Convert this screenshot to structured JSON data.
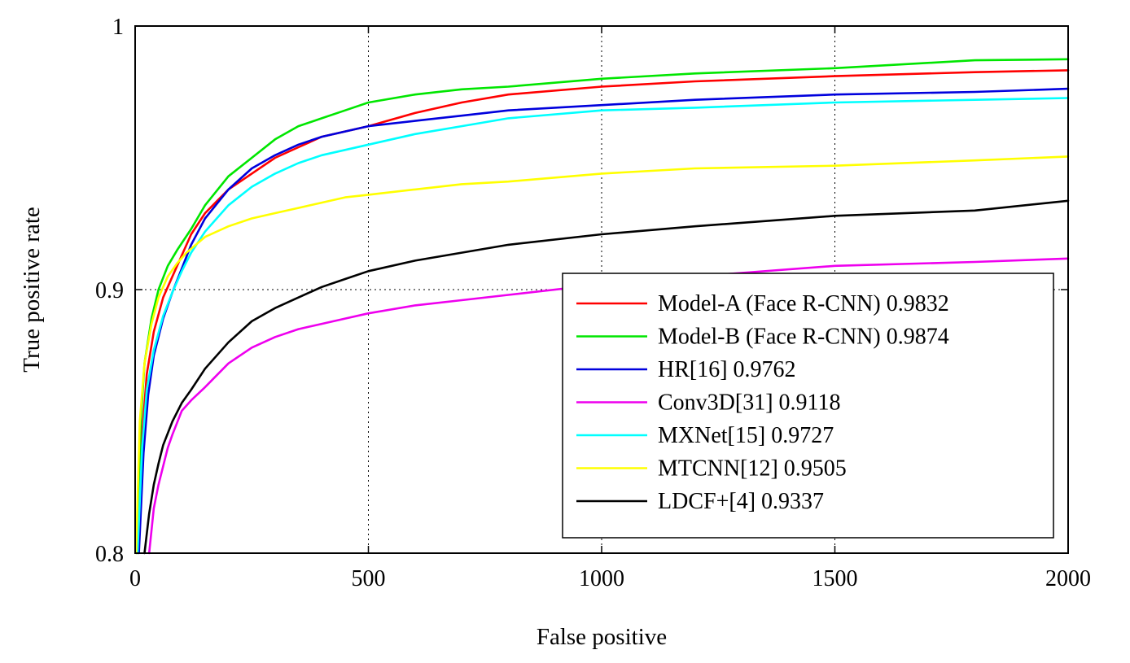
{
  "chart_data": {
    "type": "line",
    "title": "",
    "xlabel": "False positive",
    "ylabel": "True positive rate",
    "xlim": [
      0,
      2000
    ],
    "ylim": [
      0.8,
      1.0
    ],
    "xticks": [
      0,
      500,
      1000,
      1500,
      2000
    ],
    "xtick_labels": [
      "0",
      "500",
      "1000",
      "1500",
      "2000"
    ],
    "yticks": [
      0.8,
      0.9,
      1.0
    ],
    "ytick_labels": [
      "0.8",
      "0.9",
      "1"
    ],
    "grid": true,
    "legend_position": "bottom-right",
    "series": [
      {
        "name": "Model-A (Face R-CNN) 0.9832",
        "color": "#ff0000",
        "x": [
          5,
          15,
          25,
          40,
          60,
          80,
          100,
          120,
          150,
          200,
          250,
          300,
          350,
          400,
          450,
          500,
          600,
          700,
          800,
          1000,
          1200,
          1500,
          1800,
          2000
        ],
        "y": [
          0.8,
          0.845,
          0.868,
          0.884,
          0.897,
          0.905,
          0.913,
          0.921,
          0.929,
          0.938,
          0.944,
          0.95,
          0.954,
          0.958,
          0.96,
          0.962,
          0.967,
          0.971,
          0.974,
          0.977,
          0.979,
          0.981,
          0.9825,
          0.9832
        ]
      },
      {
        "name": "Model-B (Face R-CNN) 0.9874",
        "color": "#00e600",
        "x": [
          3,
          12,
          20,
          35,
          50,
          70,
          90,
          120,
          150,
          200,
          250,
          300,
          350,
          400,
          450,
          500,
          600,
          700,
          800,
          1000,
          1200,
          1500,
          1800,
          2000
        ],
        "y": [
          0.8,
          0.85,
          0.872,
          0.889,
          0.9,
          0.909,
          0.915,
          0.923,
          0.932,
          0.943,
          0.95,
          0.957,
          0.962,
          0.965,
          0.968,
          0.971,
          0.974,
          0.976,
          0.977,
          0.98,
          0.982,
          0.984,
          0.987,
          0.9874
        ]
      },
      {
        "name": "HR[16] 0.9762",
        "color": "#0000dd",
        "x": [
          8,
          18,
          28,
          40,
          60,
          80,
          100,
          120,
          150,
          200,
          250,
          300,
          350,
          400,
          450,
          500,
          600,
          700,
          800,
          1000,
          1200,
          1500,
          1800,
          2000
        ],
        "y": [
          0.8,
          0.838,
          0.86,
          0.875,
          0.889,
          0.899,
          0.908,
          0.917,
          0.927,
          0.938,
          0.946,
          0.951,
          0.955,
          0.958,
          0.96,
          0.962,
          0.964,
          0.966,
          0.968,
          0.97,
          0.972,
          0.974,
          0.975,
          0.9762
        ]
      },
      {
        "name": "Conv3D[31] 0.9118",
        "color": "#ee00ee",
        "x": [
          30,
          40,
          50,
          60,
          70,
          80,
          100,
          120,
          150,
          200,
          250,
          300,
          350,
          400,
          450,
          500,
          600,
          700,
          800,
          1000,
          1200,
          1500,
          1800,
          2000
        ],
        "y": [
          0.8,
          0.817,
          0.826,
          0.833,
          0.84,
          0.845,
          0.854,
          0.858,
          0.863,
          0.872,
          0.878,
          0.882,
          0.885,
          0.887,
          0.889,
          0.891,
          0.894,
          0.896,
          0.898,
          0.902,
          0.905,
          0.909,
          0.9105,
          0.9118
        ]
      },
      {
        "name": "MXNet[15] 0.9727",
        "color": "#00ffff",
        "x": [
          5,
          15,
          25,
          40,
          60,
          80,
          100,
          120,
          150,
          200,
          250,
          300,
          350,
          400,
          450,
          500,
          600,
          700,
          800,
          1000,
          1200,
          1500,
          1800,
          2000
        ],
        "y": [
          0.8,
          0.84,
          0.862,
          0.877,
          0.89,
          0.899,
          0.907,
          0.914,
          0.922,
          0.932,
          0.939,
          0.944,
          0.948,
          0.951,
          0.953,
          0.955,
          0.959,
          0.962,
          0.965,
          0.968,
          0.969,
          0.971,
          0.972,
          0.9727
        ]
      },
      {
        "name": "MTCNN[12] 0.9505",
        "color": "#ffff00",
        "x": [
          2,
          10,
          20,
          35,
          50,
          70,
          90,
          110,
          130,
          150,
          200,
          250,
          300,
          350,
          400,
          450,
          500,
          600,
          700,
          800,
          1000,
          1200,
          1500,
          1800,
          2000
        ],
        "y": [
          0.8,
          0.85,
          0.872,
          0.887,
          0.897,
          0.905,
          0.91,
          0.914,
          0.917,
          0.92,
          0.924,
          0.927,
          0.929,
          0.931,
          0.933,
          0.935,
          0.936,
          0.938,
          0.94,
          0.941,
          0.944,
          0.946,
          0.947,
          0.949,
          0.9505
        ]
      },
      {
        "name": "LDCF+[4] 0.9337",
        "color": "#000000",
        "x": [
          20,
          30,
          40,
          50,
          60,
          80,
          100,
          120,
          150,
          200,
          250,
          300,
          350,
          400,
          450,
          500,
          600,
          700,
          800,
          1000,
          1200,
          1500,
          1800,
          2000
        ],
        "y": [
          0.8,
          0.815,
          0.826,
          0.834,
          0.841,
          0.85,
          0.857,
          0.862,
          0.87,
          0.88,
          0.888,
          0.893,
          0.897,
          0.901,
          0.904,
          0.907,
          0.911,
          0.914,
          0.917,
          0.921,
          0.924,
          0.928,
          0.93,
          0.9337
        ]
      }
    ]
  }
}
